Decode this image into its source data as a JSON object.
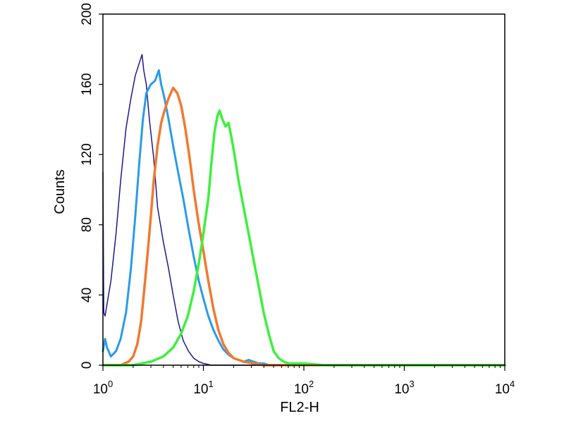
{
  "chart_data": {
    "type": "line",
    "title": "",
    "xlabel": "FL2-H",
    "ylabel": "Counts",
    "x_scale": "log",
    "xlim": [
      1,
      10000
    ],
    "ylim": [
      0,
      200
    ],
    "y_ticks": [
      {
        "value": 0,
        "label": "0"
      },
      {
        "value": 40,
        "label": "40"
      },
      {
        "value": 80,
        "label": "80"
      },
      {
        "value": 120,
        "label": "120"
      },
      {
        "value": 160,
        "label": "160"
      },
      {
        "value": 200,
        "label": "200"
      }
    ],
    "x_ticks": [
      {
        "value": 1,
        "base": "10",
        "exp": "0"
      },
      {
        "value": 10,
        "base": "10",
        "exp": "1"
      },
      {
        "value": 100,
        "base": "10",
        "exp": "2"
      },
      {
        "value": 1000,
        "base": "10",
        "exp": "3"
      },
      {
        "value": 10000,
        "base": "10",
        "exp": "4"
      }
    ],
    "grid": false,
    "legend": "none",
    "series": [
      {
        "color": "#1a1a8c",
        "width": 1.5,
        "points": [
          [
            1.0,
            110
          ],
          [
            1.02,
            30
          ],
          [
            1.05,
            28
          ],
          [
            1.1,
            35
          ],
          [
            1.2,
            48
          ],
          [
            1.35,
            75
          ],
          [
            1.5,
            105
          ],
          [
            1.7,
            135
          ],
          [
            1.9,
            152
          ],
          [
            2.1,
            165
          ],
          [
            2.3,
            172
          ],
          [
            2.45,
            177
          ],
          [
            2.55,
            168
          ],
          [
            2.7,
            160
          ],
          [
            2.9,
            140
          ],
          [
            3.2,
            118
          ],
          [
            3.5,
            90
          ],
          [
            4.0,
            70
          ],
          [
            4.5,
            55
          ],
          [
            5.0,
            40
          ],
          [
            5.6,
            25
          ],
          [
            6.3,
            14
          ],
          [
            7.1,
            8
          ],
          [
            8.0,
            4
          ],
          [
            9.0,
            2
          ],
          [
            10.0,
            1
          ],
          [
            12.0,
            0
          ],
          [
            50,
            0
          ],
          [
            10000,
            0
          ]
        ]
      },
      {
        "color": "#2a9be8",
        "width": 3,
        "points": [
          [
            1.0,
            8
          ],
          [
            1.05,
            15
          ],
          [
            1.1,
            10
          ],
          [
            1.2,
            5
          ],
          [
            1.35,
            8
          ],
          [
            1.5,
            15
          ],
          [
            1.7,
            30
          ],
          [
            1.9,
            55
          ],
          [
            2.1,
            85
          ],
          [
            2.3,
            115
          ],
          [
            2.5,
            140
          ],
          [
            2.7,
            155
          ],
          [
            3.0,
            160
          ],
          [
            3.3,
            162
          ],
          [
            3.6,
            168
          ],
          [
            3.8,
            160
          ],
          [
            4.1,
            152
          ],
          [
            4.5,
            140
          ],
          [
            5.0,
            125
          ],
          [
            5.6,
            110
          ],
          [
            6.3,
            95
          ],
          [
            7.1,
            78
          ],
          [
            8.0,
            62
          ],
          [
            9.0,
            48
          ],
          [
            10.0,
            38
          ],
          [
            11.2,
            28
          ],
          [
            12.6,
            20
          ],
          [
            14.1,
            14
          ],
          [
            15.8,
            9
          ],
          [
            17.8,
            6
          ],
          [
            20.0,
            4
          ],
          [
            22.4,
            3
          ],
          [
            25.1,
            2
          ],
          [
            28.2,
            3
          ],
          [
            31.6,
            2
          ],
          [
            35.5,
            1
          ],
          [
            40,
            1
          ],
          [
            45,
            0
          ],
          [
            10000,
            0
          ]
        ]
      },
      {
        "color": "#f07a30",
        "width": 3.5,
        "points": [
          [
            1.0,
            0
          ],
          [
            1.5,
            0
          ],
          [
            1.8,
            2
          ],
          [
            2.0,
            5
          ],
          [
            2.2,
            12
          ],
          [
            2.4,
            25
          ],
          [
            2.6,
            45
          ],
          [
            2.8,
            65
          ],
          [
            3.0,
            85
          ],
          [
            3.2,
            105
          ],
          [
            3.5,
            125
          ],
          [
            3.8,
            138
          ],
          [
            4.1,
            145
          ],
          [
            4.5,
            152
          ],
          [
            5.0,
            158
          ],
          [
            5.5,
            155
          ],
          [
            6.0,
            148
          ],
          [
            6.6,
            135
          ],
          [
            7.3,
            118
          ],
          [
            8.0,
            100
          ],
          [
            8.9,
            82
          ],
          [
            10.0,
            65
          ],
          [
            11.2,
            48
          ],
          [
            12.6,
            32
          ],
          [
            14.1,
            20
          ],
          [
            15.8,
            12
          ],
          [
            17.8,
            7
          ],
          [
            20.0,
            4
          ],
          [
            25.1,
            2
          ],
          [
            31.6,
            1
          ],
          [
            40,
            0
          ],
          [
            10000,
            0
          ]
        ]
      },
      {
        "color": "#3ef03e",
        "width": 3.5,
        "points": [
          [
            1.0,
            0
          ],
          [
            2.0,
            0
          ],
          [
            3.0,
            2
          ],
          [
            4.0,
            5
          ],
          [
            5.0,
            10
          ],
          [
            6.0,
            18
          ],
          [
            7.0,
            28
          ],
          [
            8.0,
            42
          ],
          [
            9.0,
            58
          ],
          [
            10.0,
            75
          ],
          [
            11.2,
            95
          ],
          [
            12.0,
            115
          ],
          [
            12.9,
            133
          ],
          [
            13.8,
            142
          ],
          [
            14.5,
            145
          ],
          [
            15.5,
            140
          ],
          [
            16.6,
            136
          ],
          [
            17.8,
            138
          ],
          [
            19.0,
            130
          ],
          [
            20.4,
            120
          ],
          [
            22.4,
            105
          ],
          [
            25.1,
            90
          ],
          [
            28.2,
            75
          ],
          [
            31.6,
            60
          ],
          [
            35.5,
            45
          ],
          [
            39.8,
            30
          ],
          [
            44.7,
            18
          ],
          [
            50.1,
            8
          ],
          [
            56.2,
            4
          ],
          [
            63.1,
            2
          ],
          [
            70.8,
            1
          ],
          [
            100,
            1
          ],
          [
            158,
            0
          ],
          [
            10000,
            0
          ]
        ]
      }
    ]
  }
}
